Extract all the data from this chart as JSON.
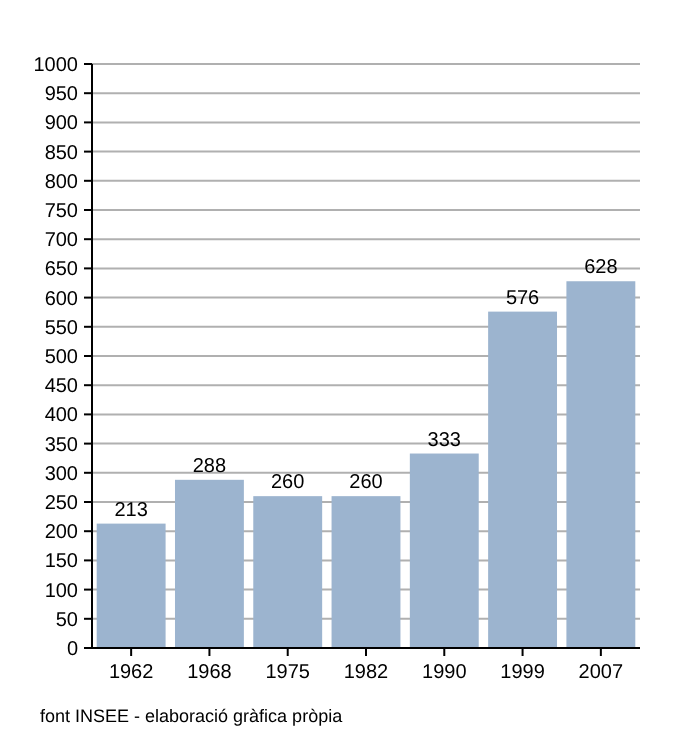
{
  "chart_data": {
    "type": "bar",
    "categories": [
      "1962",
      "1968",
      "1975",
      "1982",
      "1990",
      "1999",
      "2007"
    ],
    "values": [
      213,
      288,
      260,
      260,
      333,
      576,
      628
    ],
    "color": "#9cb4cf",
    "data_labels": true,
    "ylim": [
      0,
      1000
    ],
    "yticks": [
      0,
      50,
      100,
      150,
      200,
      250,
      300,
      350,
      400,
      450,
      500,
      550,
      600,
      650,
      700,
      750,
      800,
      850,
      900,
      950,
      1000
    ],
    "grid": "y",
    "annotations": [
      "font INSEE - elaboració gràfica pròpia"
    ]
  }
}
